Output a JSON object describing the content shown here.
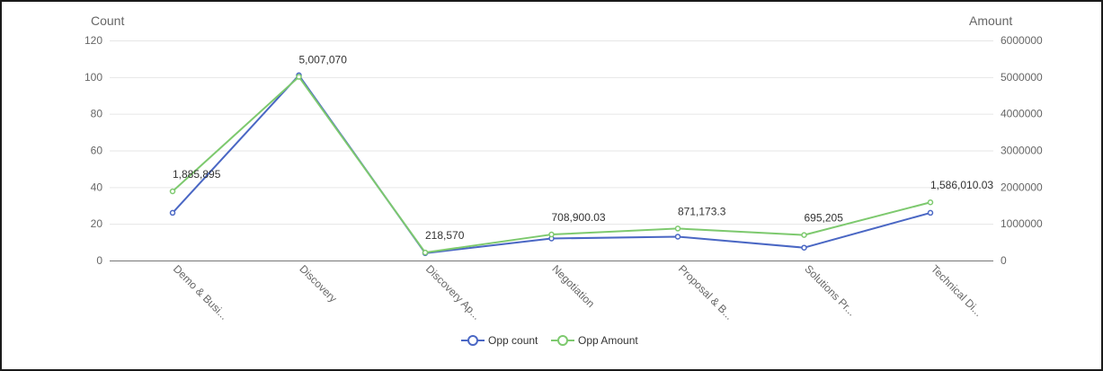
{
  "chart_data": {
    "type": "line",
    "categories": [
      "Demo & Busi...",
      "Discovery",
      "Discovery Ap...",
      "Negotiation",
      "Proposal & B...",
      "Solutions Pr...",
      "Technical Di..."
    ],
    "series": [
      {
        "name": "Opp count",
        "axis": "left",
        "color": "#4a67c4",
        "values": [
          26,
          101,
          4,
          12,
          13,
          7,
          26
        ]
      },
      {
        "name": "Opp Amount",
        "axis": "right",
        "color": "#7dc96e",
        "values": [
          1885895,
          5007070,
          218570,
          708900.03,
          871173.3,
          695205,
          1586010.03
        ]
      }
    ],
    "data_labels": [
      "1,885,895",
      "5,007,070",
      "218,570",
      "708,900.03",
      "871,173.3",
      "695,205",
      "1,586,010.03"
    ],
    "ylabel_left": "Count",
    "ylabel_right": "Amount",
    "ylim_left": [
      0,
      120
    ],
    "ylim_right": [
      0,
      6000000
    ],
    "yticks_left": [
      "0",
      "20",
      "40",
      "60",
      "80",
      "100",
      "120"
    ],
    "yticks_right": [
      "0",
      "1000000",
      "2000000",
      "3000000",
      "4000000",
      "5000000",
      "6000000"
    ],
    "grid": true,
    "legend_position": "bottom-center"
  }
}
